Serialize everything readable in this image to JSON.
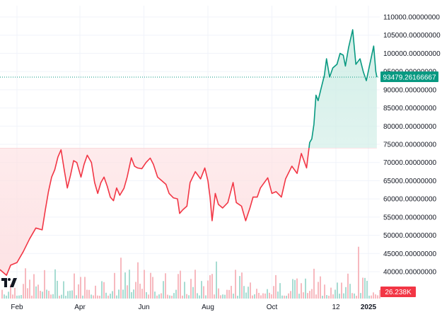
{
  "chart_data": {
    "type": "area",
    "baseline_value": 74000,
    "ylim": [
      36000,
      111000
    ],
    "y_ticks": [
      "40000.00000000",
      "45000.00000000",
      "50000.00000000",
      "55000.00000000",
      "60000.00000000",
      "65000.00000000",
      "70000.00000000",
      "75000.00000000",
      "80000.00000000",
      "85000.00000000",
      "90000.00000000",
      "95000.00000000",
      "100000.00000000",
      "105000.00000000",
      "110000.00000000"
    ],
    "x_ticks": [
      {
        "label": "Feb",
        "date": "2024-02-01",
        "bold": false
      },
      {
        "label": "Apr",
        "date": "2024-04-01",
        "bold": false
      },
      {
        "label": "Jun",
        "date": "2024-06-01",
        "bold": false
      },
      {
        "label": "Aug",
        "date": "2024-08-01",
        "bold": false
      },
      {
        "label": "Oct",
        "date": "2024-10-01",
        "bold": false
      },
      {
        "label": "12",
        "date": "2024-12-01",
        "bold": false
      },
      {
        "label": "2025",
        "date": "2025-01-01",
        "bold": true
      }
    ],
    "last_price_label": "93479.26166667",
    "last_price": 93479.26,
    "volume_label": "26.238K",
    "colors": {
      "up_line": "#089981",
      "down_line": "#f23645",
      "up_fill": "#d1eee7",
      "down_fill": "#fde1e3",
      "vol_up": "#a7dcd2",
      "vol_down": "#f7b9bf",
      "last_price_bg": "#089981",
      "volume_bg": "#f23645"
    },
    "series": [
      {
        "values": [
          [
            "2024-01-10",
            39500
          ],
          [
            "2024-01-16",
            40500
          ],
          [
            "2024-01-22",
            39000
          ],
          [
            "2024-01-26",
            41800
          ],
          [
            "2024-02-01",
            42500
          ],
          [
            "2024-02-07",
            45500
          ],
          [
            "2024-02-13",
            49000
          ],
          [
            "2024-02-19",
            52000
          ],
          [
            "2024-02-25",
            51500
          ],
          [
            "2024-02-28",
            57000
          ],
          [
            "2024-03-02",
            62000
          ],
          [
            "2024-03-05",
            66000
          ],
          [
            "2024-03-08",
            68000
          ],
          [
            "2024-03-11",
            71500
          ],
          [
            "2024-03-14",
            73500
          ],
          [
            "2024-03-17",
            68000
          ],
          [
            "2024-03-20",
            63000
          ],
          [
            "2024-03-23",
            66500
          ],
          [
            "2024-03-26",
            70500
          ],
          [
            "2024-03-29",
            70000
          ],
          [
            "2024-04-02",
            66000
          ],
          [
            "2024-04-05",
            69500
          ],
          [
            "2024-04-08",
            72000
          ],
          [
            "2024-04-12",
            70000
          ],
          [
            "2024-04-15",
            64500
          ],
          [
            "2024-04-18",
            61500
          ],
          [
            "2024-04-21",
            64500
          ],
          [
            "2024-04-24",
            66000
          ],
          [
            "2024-04-27",
            63500
          ],
          [
            "2024-04-30",
            60500
          ],
          [
            "2024-05-03",
            59500
          ],
          [
            "2024-05-06",
            63000
          ],
          [
            "2024-05-09",
            61000
          ],
          [
            "2024-05-13",
            62900
          ],
          [
            "2024-05-16",
            66000
          ],
          [
            "2024-05-20",
            71300
          ],
          [
            "2024-05-23",
            69000
          ],
          [
            "2024-05-26",
            68500
          ],
          [
            "2024-05-30",
            68300
          ],
          [
            "2024-06-03",
            70000
          ],
          [
            "2024-06-07",
            71200
          ],
          [
            "2024-06-10",
            69500
          ],
          [
            "2024-06-14",
            66000
          ],
          [
            "2024-06-18",
            65000
          ],
          [
            "2024-06-22",
            64000
          ],
          [
            "2024-06-25",
            61500
          ],
          [
            "2024-06-29",
            60300
          ],
          [
            "2024-07-03",
            60000
          ],
          [
            "2024-07-05",
            56000
          ],
          [
            "2024-07-08",
            57000
          ],
          [
            "2024-07-12",
            58000
          ],
          [
            "2024-07-15",
            64500
          ],
          [
            "2024-07-20",
            67500
          ],
          [
            "2024-07-25",
            65500
          ],
          [
            "2024-07-29",
            68500
          ],
          [
            "2024-08-01",
            65000
          ],
          [
            "2024-08-03",
            60500
          ],
          [
            "2024-08-05",
            54000
          ],
          [
            "2024-08-08",
            61500
          ],
          [
            "2024-08-11",
            58500
          ],
          [
            "2024-08-15",
            57500
          ],
          [
            "2024-08-20",
            59000
          ],
          [
            "2024-08-25",
            64500
          ],
          [
            "2024-08-28",
            59000
          ],
          [
            "2024-09-02",
            58000
          ],
          [
            "2024-09-06",
            54000
          ],
          [
            "2024-09-10",
            57500
          ],
          [
            "2024-09-13",
            60500
          ],
          [
            "2024-09-17",
            60500
          ],
          [
            "2024-09-20",
            63000
          ],
          [
            "2024-09-27",
            65800
          ],
          [
            "2024-10-01",
            61500
          ],
          [
            "2024-10-05",
            62000
          ],
          [
            "2024-10-10",
            60500
          ],
          [
            "2024-10-14",
            65500
          ],
          [
            "2024-10-20",
            69000
          ],
          [
            "2024-10-25",
            67000
          ],
          [
            "2024-10-29",
            72500
          ],
          [
            "2024-11-03",
            68500
          ],
          [
            "2024-11-06",
            75500
          ],
          [
            "2024-11-08",
            76500
          ],
          [
            "2024-11-10",
            80500
          ],
          [
            "2024-11-12",
            88500
          ],
          [
            "2024-11-14",
            87000
          ],
          [
            "2024-11-17",
            90500
          ],
          [
            "2024-11-20",
            94000
          ],
          [
            "2024-11-22",
            98500
          ],
          [
            "2024-11-25",
            93500
          ],
          [
            "2024-11-28",
            96000
          ],
          [
            "2024-12-02",
            97000
          ],
          [
            "2024-12-05",
            100000
          ],
          [
            "2024-12-08",
            99500
          ],
          [
            "2024-12-10",
            96500
          ],
          [
            "2024-12-13",
            101500
          ],
          [
            "2024-12-17",
            106500
          ],
          [
            "2024-12-20",
            97000
          ],
          [
            "2024-12-24",
            98500
          ],
          [
            "2024-12-27",
            95000
          ],
          [
            "2024-12-30",
            92500
          ],
          [
            "2025-01-03",
            98000
          ],
          [
            "2025-01-06",
            102000
          ],
          [
            "2025-01-08",
            95000
          ],
          [
            "2025-01-09",
            93479
          ]
        ]
      }
    ]
  }
}
